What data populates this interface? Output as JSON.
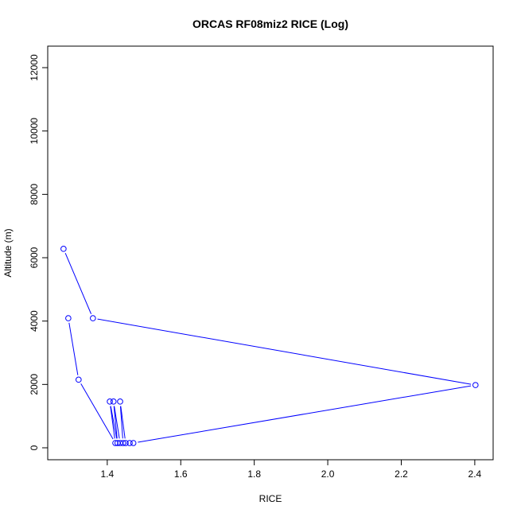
{
  "chart_data": {
    "type": "line",
    "title": "ORCAS RF08miz2 RICE (Log)",
    "xlabel": "RICE",
    "ylabel": "Altitude (m)",
    "xlim": [
      1.238,
      2.45
    ],
    "ylim": [
      -377,
      12679
    ],
    "xticks": [
      1.4,
      1.6,
      1.8,
      2.0,
      2.2,
      2.4
    ],
    "xtick_labels": [
      "1.4",
      "1.6",
      "1.8",
      "2.0",
      "2.2",
      "2.4"
    ],
    "yticks": [
      0,
      2000,
      4000,
      6000,
      8000,
      10000,
      12000
    ],
    "ytick_labels": [
      "0",
      "2000",
      "4000",
      "6000",
      "8000",
      "10000",
      "12000"
    ],
    "grid": false,
    "color": "#0000ff",
    "marker": "open-circle",
    "series": [
      {
        "x": [
          1.294,
          1.322,
          1.422,
          1.407,
          1.428,
          1.417,
          1.435,
          1.443,
          1.435,
          1.45,
          1.461,
          1.471,
          2.402,
          1.361,
          1.281
        ],
        "y": [
          4090,
          2150,
          150,
          1460,
          150,
          1460,
          150,
          150,
          1460,
          150,
          150,
          150,
          1980,
          4090,
          6280
        ]
      }
    ]
  }
}
